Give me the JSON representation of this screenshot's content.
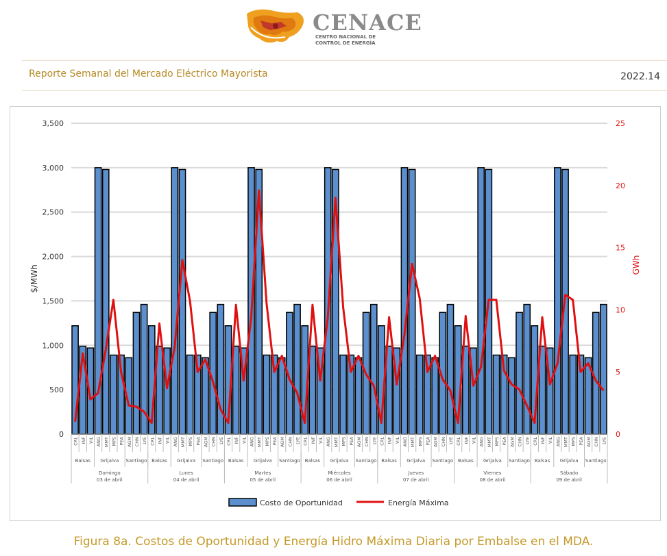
{
  "header": {
    "logo_name": "CENACE",
    "logo_sub_1": "CENTRO NACIONAL DE",
    "logo_sub_2": "CONTROL DE ENERGÍA",
    "report_title": "Reporte Semanal del Mercado Eléctrico Mayorista",
    "report_number": "2022.14"
  },
  "colors": {
    "bar": "#5b8fcd",
    "line": "#e01010",
    "accent": "#b58a25"
  },
  "chart_data": {
    "type": "bar+line",
    "ylabel_left": "$/MWh",
    "ylabel_right": "GWh",
    "ylim_left": [
      0,
      3500
    ],
    "ylim_right": [
      0,
      25
    ],
    "left_ticks": [
      "0",
      "500",
      "1,000",
      "1,500",
      "2,000",
      "2,500",
      "3,000",
      "3,500"
    ],
    "right_ticks": [
      "0",
      "5",
      "10",
      "15",
      "20",
      "25"
    ],
    "plants": [
      "CRL",
      "INF",
      "VIL",
      "ANG",
      "MMT",
      "MPS",
      "PEA",
      "AGM",
      "CHN",
      "LYE"
    ],
    "groups": [
      {
        "label": "Balsas",
        "count": 3
      },
      {
        "label": "Grijalva",
        "count": 4
      },
      {
        "label": "Santiago",
        "count": 3
      }
    ],
    "days": [
      {
        "name": "Domingo",
        "date": "03 de abril"
      },
      {
        "name": "Lunes",
        "date": "04 de abril"
      },
      {
        "name": "Martes",
        "date": "05 de abril"
      },
      {
        "name": "Miércoles",
        "date": "06 de abril"
      },
      {
        "name": "Jueves",
        "date": "07 de abril"
      },
      {
        "name": "Viernes",
        "date": "08 de abril"
      },
      {
        "name": "Sábado",
        "date": "09 de abril"
      }
    ],
    "series": [
      {
        "name": "Costo de Oportunidad",
        "axis": "left",
        "type": "bar",
        "values": [
          1220,
          990,
          970,
          3000,
          2980,
          890,
          890,
          860,
          1370,
          1460,
          1220,
          990,
          970,
          3000,
          2980,
          890,
          890,
          860,
          1370,
          1460,
          1220,
          990,
          970,
          3000,
          2980,
          890,
          890,
          860,
          1370,
          1460,
          1220,
          990,
          970,
          3000,
          2980,
          890,
          890,
          860,
          1370,
          1460,
          1220,
          990,
          970,
          3000,
          2980,
          890,
          890,
          860,
          1370,
          1460,
          1220,
          990,
          970,
          3000,
          2980,
          890,
          890,
          860,
          1370,
          1460,
          1220,
          990,
          970,
          3000,
          2980,
          890,
          890,
          860,
          1370,
          1460
        ]
      },
      {
        "name": "Energía Máxima",
        "axis": "right",
        "type": "line",
        "values": [
          1.0,
          6.5,
          2.8,
          3.3,
          6.8,
          10.8,
          5.0,
          2.3,
          2.2,
          1.8,
          0.9,
          8.9,
          3.7,
          7.0,
          14.0,
          10.7,
          5.0,
          6.0,
          4.2,
          2.0,
          0.9,
          10.4,
          4.3,
          9.4,
          19.6,
          10.5,
          5.0,
          6.3,
          4.4,
          3.3,
          0.9,
          10.4,
          4.3,
          9.4,
          19.0,
          10.2,
          5.0,
          6.3,
          4.8,
          3.9,
          0.9,
          9.4,
          4.0,
          8.0,
          13.7,
          10.9,
          5.0,
          6.3,
          4.4,
          3.5,
          0.9,
          9.5,
          3.9,
          5.4,
          10.8,
          10.8,
          5.1,
          4.0,
          3.6,
          2.3,
          0.9,
          9.4,
          4.0,
          5.7,
          11.2,
          10.8,
          5.0,
          5.7,
          4.3,
          3.5
        ]
      }
    ],
    "legend": [
      "Costo de Oportunidad",
      "Energía Máxima"
    ]
  },
  "caption": "Figura 8a. Costos de Oportunidad y Energía Hidro Máxima Diaria por Embalse en el MDA."
}
